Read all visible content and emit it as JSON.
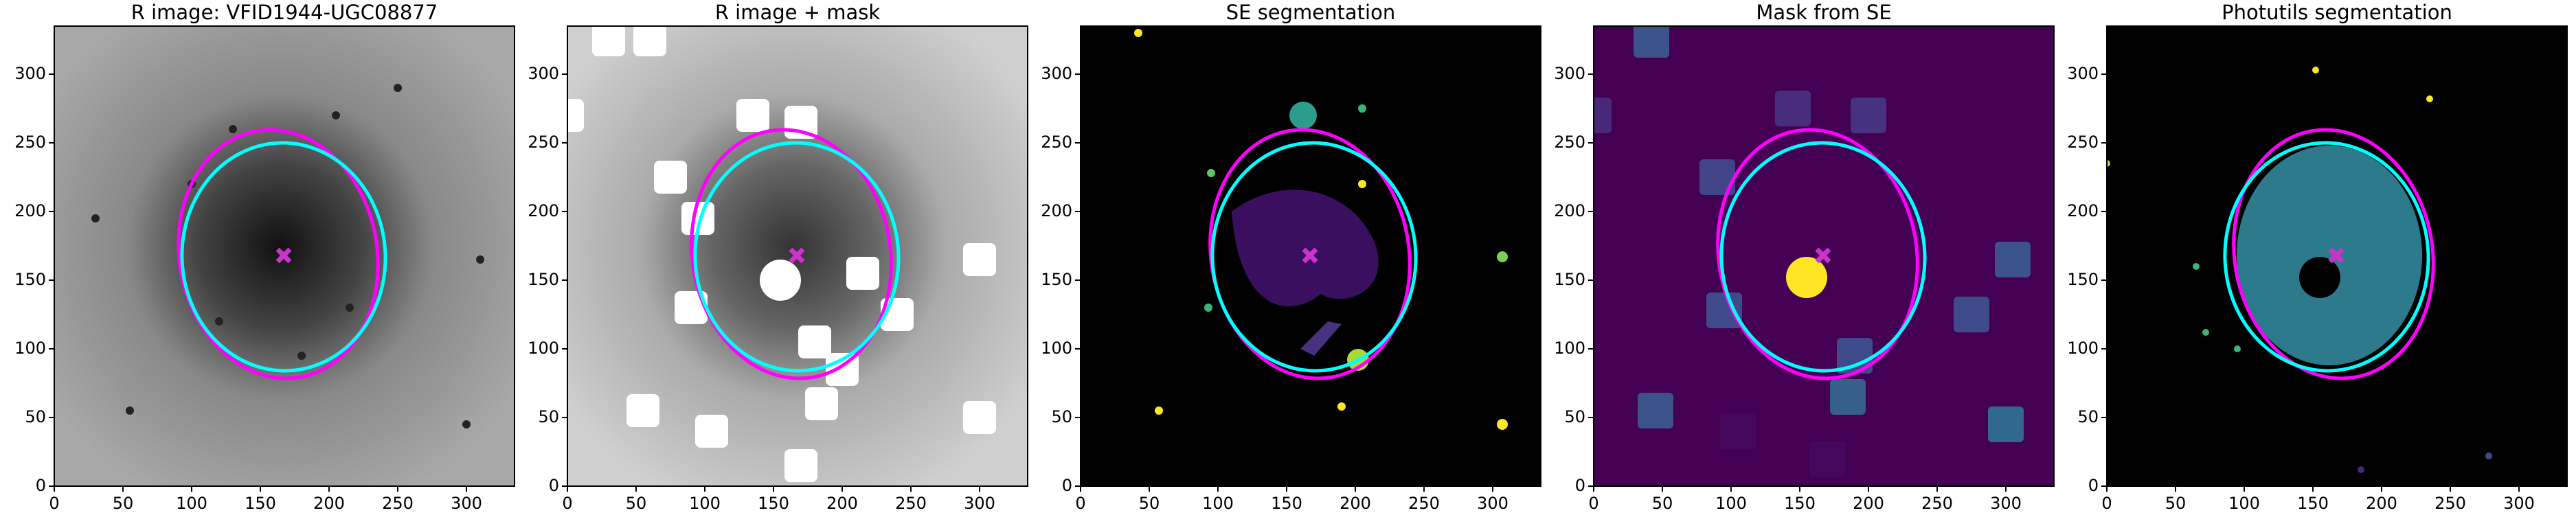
{
  "chart_data": [
    {
      "type": "image",
      "title": "R image: VFID1944-UGC08877",
      "xlim": [
        0,
        335
      ],
      "ylim": [
        0,
        335
      ],
      "xticks": [
        0,
        50,
        100,
        150,
        200,
        250,
        300
      ],
      "yticks": [
        0,
        50,
        100,
        150,
        200,
        250,
        300
      ],
      "ellipses": [
        {
          "x": 163,
          "y": 169,
          "rx": 72,
          "ry": 91,
          "angle": -10,
          "color": "#ff00ff"
        },
        {
          "x": 167,
          "y": 167,
          "rx": 74,
          "ry": 83,
          "angle": -3,
          "color": "#00ffff"
        }
      ],
      "marker": {
        "x": 167,
        "y": 168,
        "color": "#cc33cc"
      }
    },
    {
      "type": "image",
      "title": "R image + mask",
      "xlim": [
        0,
        335
      ],
      "ylim": [
        0,
        335
      ],
      "xticks": [
        0,
        50,
        100,
        150,
        200,
        250,
        300
      ],
      "yticks": [
        0,
        50,
        100,
        150,
        200,
        250,
        300
      ],
      "ellipses": [
        {
          "x": 163,
          "y": 169,
          "rx": 72,
          "ry": 91,
          "angle": -10,
          "color": "#ff00ff"
        },
        {
          "x": 167,
          "y": 167,
          "rx": 74,
          "ry": 83,
          "angle": -3,
          "color": "#00ffff"
        }
      ],
      "marker": {
        "x": 167,
        "y": 168,
        "color": "#cc33cc"
      }
    },
    {
      "type": "image",
      "title": "SE segmentation",
      "xlim": [
        0,
        335
      ],
      "ylim": [
        0,
        335
      ],
      "xticks": [
        0,
        50,
        100,
        150,
        200,
        250,
        300
      ],
      "yticks": [
        0,
        50,
        100,
        150,
        200,
        250,
        300
      ],
      "ellipses": [
        {
          "x": 167,
          "y": 169,
          "rx": 72,
          "ry": 91,
          "angle": -10,
          "color": "#ff00ff"
        },
        {
          "x": 170,
          "y": 167,
          "rx": 74,
          "ry": 83,
          "angle": -3,
          "color": "#00ffff"
        }
      ],
      "marker": {
        "x": 167,
        "y": 168,
        "color": "#cc33cc"
      }
    },
    {
      "type": "image",
      "title": "Mask from SE",
      "xlim": [
        0,
        335
      ],
      "ylim": [
        0,
        335
      ],
      "xticks": [
        0,
        50,
        100,
        150,
        200,
        250,
        300
      ],
      "yticks": [
        0,
        50,
        100,
        150,
        200,
        250,
        300
      ],
      "ellipses": [
        {
          "x": 163,
          "y": 169,
          "rx": 72,
          "ry": 91,
          "angle": -10,
          "color": "#ff00ff"
        },
        {
          "x": 167,
          "y": 167,
          "rx": 74,
          "ry": 83,
          "angle": -3,
          "color": "#00ffff"
        }
      ],
      "marker": {
        "x": 167,
        "y": 168,
        "color": "#cc33cc"
      }
    },
    {
      "type": "image",
      "title": "Photutils segmentation",
      "xlim": [
        0,
        335
      ],
      "ylim": [
        0,
        335
      ],
      "xticks": [
        0,
        50,
        100,
        150,
        200,
        250,
        300
      ],
      "yticks": [
        0,
        50,
        100,
        150,
        200,
        250,
        300
      ],
      "ellipses": [
        {
          "x": 165,
          "y": 169,
          "rx": 72,
          "ry": 91,
          "angle": -10,
          "color": "#ff00ff"
        },
        {
          "x": 160,
          "y": 167,
          "rx": 74,
          "ry": 83,
          "angle": -3,
          "color": "#00ffff"
        }
      ],
      "marker": {
        "x": 167,
        "y": 168,
        "color": "#cc33cc"
      }
    }
  ]
}
